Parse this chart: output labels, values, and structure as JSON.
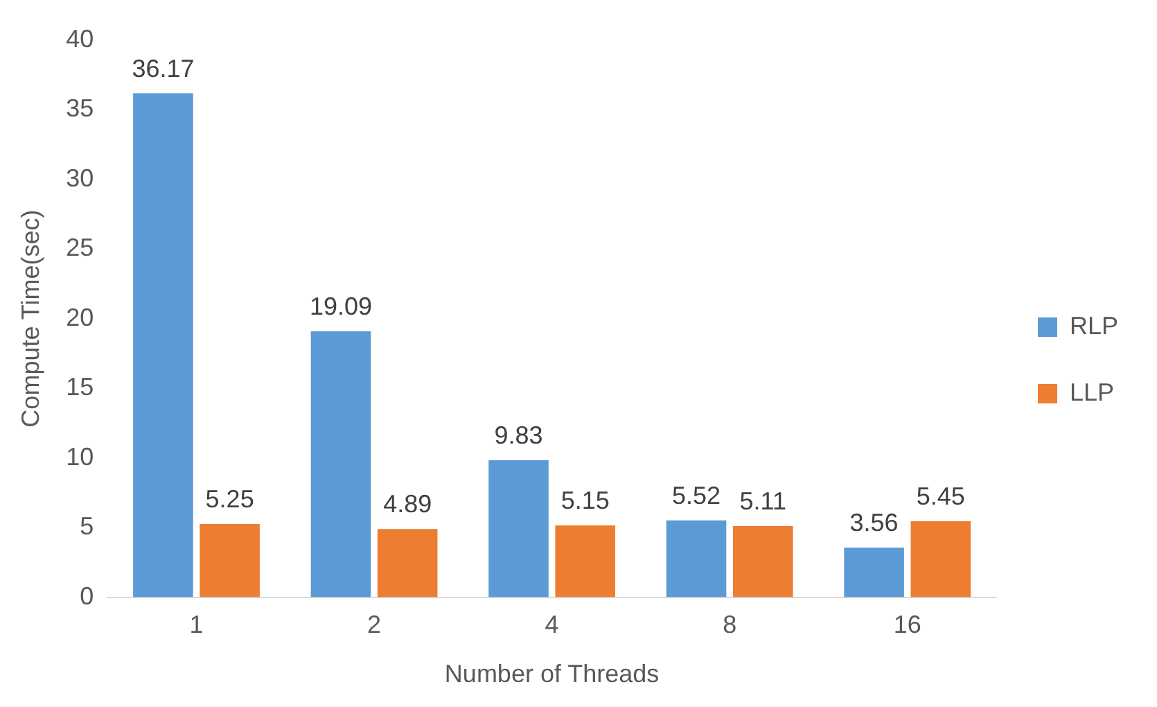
{
  "chart_data": {
    "type": "bar",
    "xlabel": "Number of Threads",
    "ylabel": "Compute Time(sec)",
    "categories": [
      "1",
      "2",
      "4",
      "8",
      "16"
    ],
    "series": [
      {
        "name": "RLP",
        "color": "#5b9bd5",
        "values": [
          36.17,
          19.09,
          9.83,
          5.52,
          3.56
        ]
      },
      {
        "name": "LLP",
        "color": "#ed7d31",
        "values": [
          5.25,
          4.89,
          5.15,
          5.11,
          5.45
        ]
      }
    ],
    "ylim": [
      0,
      40
    ],
    "yticks": [
      0,
      5,
      10,
      15,
      20,
      25,
      30,
      35,
      40
    ],
    "grid": false,
    "legend": "right",
    "data_labels": true
  }
}
